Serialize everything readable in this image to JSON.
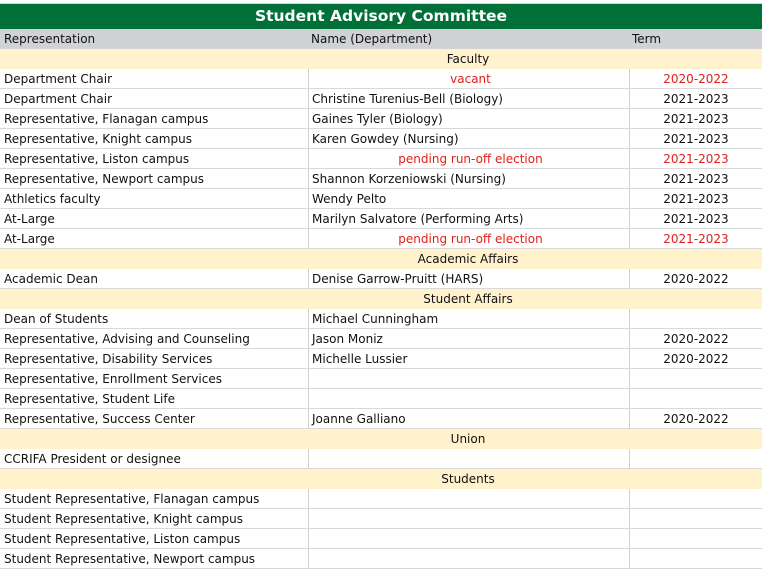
{
  "title": "Student Advisory Committee",
  "columns": [
    "Representation",
    "Name (Department)",
    "Term"
  ],
  "colors": {
    "title_bg": "#007038",
    "header_bg": "#d0d2d6",
    "section_bg": "#fff2cc",
    "highlight_text": "#e0201b"
  },
  "rows": [
    {
      "section": "Faculty"
    },
    {
      "rep": "Department Chair",
      "name": "vacant",
      "term": "2020-2022",
      "highlight": true
    },
    {
      "rep": "Department Chair",
      "name": "Christine Turenius-Bell (Biology)",
      "term": "2021-2023"
    },
    {
      "rep": "Representative, Flanagan campus",
      "name": "Gaines Tyler (Biology)",
      "term": "2021-2023"
    },
    {
      "rep": "Representative, Knight campus",
      "name": "Karen Gowdey (Nursing)",
      "term": "2021-2023"
    },
    {
      "rep": "Representative, Liston campus",
      "name": "pending run-off election",
      "term": "2021-2023",
      "highlight": true
    },
    {
      "rep": "Representative, Newport campus",
      "name": "Shannon Korzeniowski (Nursing)",
      "term": "2021-2023"
    },
    {
      "rep": "Athletics faculty",
      "name": "Wendy Pelto",
      "term": "2021-2023"
    },
    {
      "rep": "At-Large",
      "name": "Marilyn Salvatore (Performing Arts)",
      "term": "2021-2023"
    },
    {
      "rep": "At-Large",
      "name": "pending run-off election",
      "term": "2021-2023",
      "highlight": true
    },
    {
      "section": "Academic Affairs"
    },
    {
      "rep": "Academic Dean",
      "name": "Denise Garrow-Pruitt (HARS)",
      "term": "2020-2022"
    },
    {
      "section": "Student Affairs"
    },
    {
      "rep": "Dean of Students",
      "name": "Michael Cunningham",
      "term": ""
    },
    {
      "rep": "Representative, Advising and Counseling",
      "name": "Jason Moniz",
      "term": "2020-2022"
    },
    {
      "rep": "Representative, Disability Services",
      "name": "Michelle Lussier",
      "term": "2020-2022"
    },
    {
      "rep": "Representative, Enrollment Services",
      "name": "",
      "term": ""
    },
    {
      "rep": "Representative, Student Life",
      "name": "",
      "term": ""
    },
    {
      "rep": "Representative, Success Center",
      "name": "Joanne Galliano",
      "term": "2020-2022"
    },
    {
      "section": "Union"
    },
    {
      "rep": "CCRIFA President or designee",
      "name": "",
      "term": ""
    },
    {
      "section": "Students"
    },
    {
      "rep": "Student Representative, Flanagan campus",
      "name": "",
      "term": ""
    },
    {
      "rep": "Student Representative, Knight campus",
      "name": "",
      "term": ""
    },
    {
      "rep": "Student Representative, Liston campus",
      "name": "",
      "term": ""
    },
    {
      "rep": "Student Representative, Newport campus",
      "name": "",
      "term": ""
    }
  ]
}
